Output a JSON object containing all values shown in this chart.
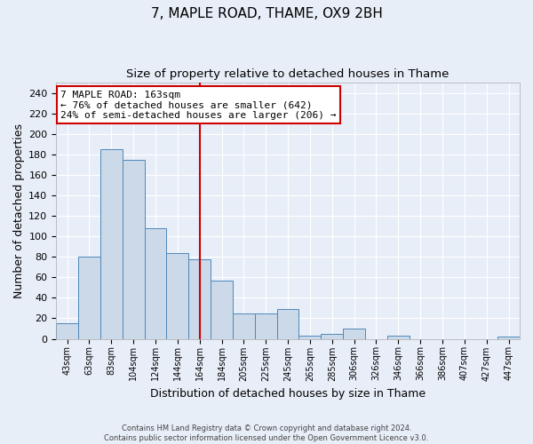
{
  "title": "7, MAPLE ROAD, THAME, OX9 2BH",
  "subtitle": "Size of property relative to detached houses in Thame",
  "xlabel": "Distribution of detached houses by size in Thame",
  "ylabel": "Number of detached properties",
  "categories": [
    "43sqm",
    "63sqm",
    "83sqm",
    "104sqm",
    "124sqm",
    "144sqm",
    "164sqm",
    "184sqm",
    "205sqm",
    "225sqm",
    "245sqm",
    "265sqm",
    "285sqm",
    "306sqm",
    "326sqm",
    "346sqm",
    "366sqm",
    "386sqm",
    "407sqm",
    "427sqm",
    "447sqm"
  ],
  "values": [
    15,
    80,
    185,
    175,
    108,
    84,
    78,
    57,
    25,
    25,
    29,
    3,
    5,
    10,
    0,
    3,
    0,
    0,
    0,
    0,
    2
  ],
  "bar_color": "#ccd9e8",
  "bar_edge_color": "#4d88bb",
  "vline_x": 6,
  "vline_color": "#cc0000",
  "annotation_line1": "7 MAPLE ROAD: 163sqm",
  "annotation_line2": "← 76% of detached houses are smaller (642)",
  "annotation_line3": "24% of semi-detached houses are larger (206) →",
  "annotation_box_color": "#ffffff",
  "annotation_box_edge": "#cc0000",
  "ylim": [
    0,
    250
  ],
  "yticks": [
    0,
    20,
    40,
    60,
    80,
    100,
    120,
    140,
    160,
    180,
    200,
    220,
    240
  ],
  "fig_bg": "#e8eef8",
  "plot_bg": "#e8eef8",
  "footer": "Contains HM Land Registry data © Crown copyright and database right 2024.\nContains public sector information licensed under the Open Government Licence v3.0.",
  "title_fontsize": 11,
  "subtitle_fontsize": 9.5,
  "xlabel_fontsize": 9,
  "ylabel_fontsize": 9,
  "annotation_fontsize": 8,
  "footer_fontsize": 6
}
